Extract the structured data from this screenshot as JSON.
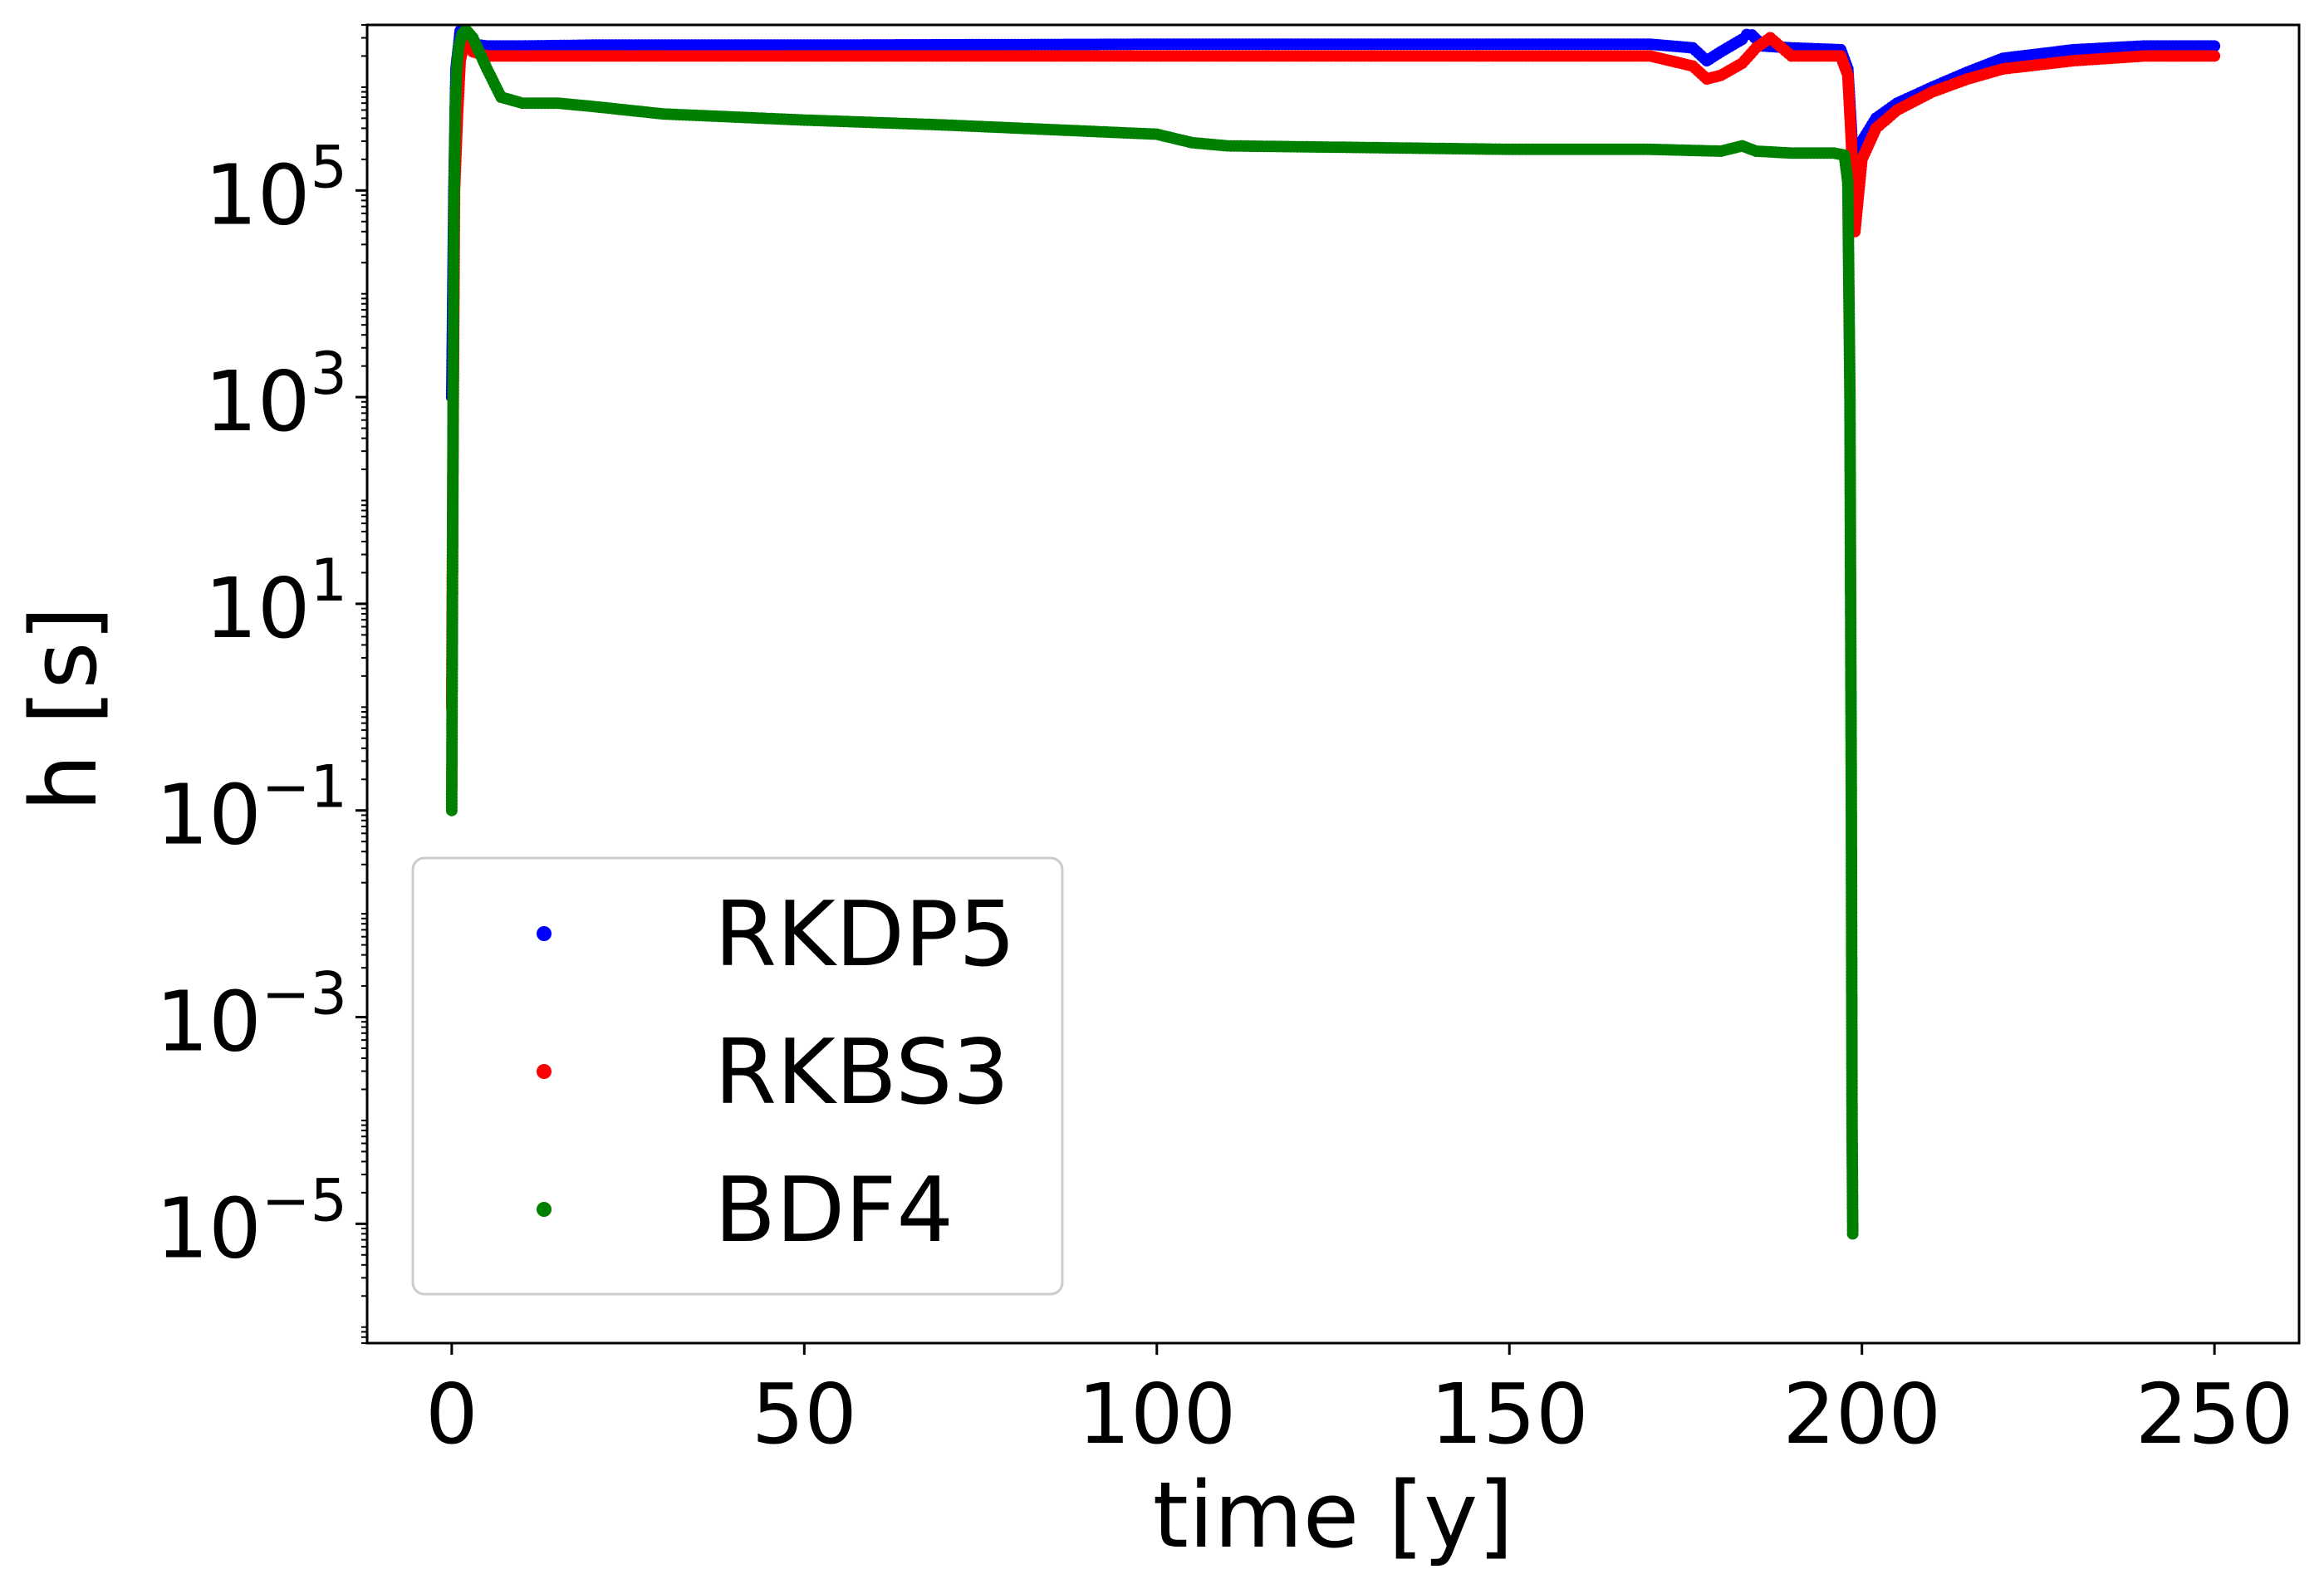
{
  "chart_data": {
    "type": "scatter",
    "title": "",
    "xlabel": "time [y]",
    "ylabel": "h [s]",
    "xlim": [
      -12,
      262
    ],
    "ylim": [
      7e-07,
      4000000.0
    ],
    "yscale": "log",
    "grid": false,
    "legend": {
      "placement": "lower-left"
    },
    "x_ticks": [
      {
        "value": 0,
        "label": "0"
      },
      {
        "value": 50,
        "label": "50"
      },
      {
        "value": 100,
        "label": "100"
      },
      {
        "value": 150,
        "label": "150"
      },
      {
        "value": 200,
        "label": "200"
      },
      {
        "value": 250,
        "label": "250"
      }
    ],
    "y_ticks": [
      {
        "value": 100000.0,
        "base": "10",
        "exponent": "5"
      },
      {
        "value": 1000.0,
        "base": "10",
        "exponent": "3"
      },
      {
        "value": 10.0,
        "base": "10",
        "exponent": "1"
      },
      {
        "value": 0.1,
        "base": "10",
        "exponent": "−1"
      },
      {
        "value": 0.001,
        "base": "10",
        "exponent": "−3"
      },
      {
        "value": 1e-05,
        "base": "10",
        "exponent": "−5"
      }
    ],
    "series": [
      {
        "name": "RKDP5",
        "color": "#0000ff",
        "x": [
          0,
          0.3,
          0.6,
          1.2,
          2,
          3,
          5,
          10,
          20,
          50,
          100,
          150,
          170,
          176,
          178,
          180,
          183,
          184,
          186,
          190,
          197,
          198,
          198.5,
          199,
          200,
          202,
          205,
          210,
          215,
          220,
          230,
          240,
          250
        ],
        "y": [
          1000.0,
          100000.0,
          1500000.0,
          3500000.0,
          3000000.0,
          2600000.0,
          2500000.0,
          2500000.0,
          2550000.0,
          2550000.0,
          2600000.0,
          2600000.0,
          2600000.0,
          2400000.0,
          1800000.0,
          2200000.0,
          2900000.0,
          3400000.0,
          2500000.0,
          2400000.0,
          2300000.0,
          1500000.0,
          400000.0,
          100000.0,
          300000.0,
          500000.0,
          700000.0,
          1000000.0,
          1400000.0,
          1900000.0,
          2300000.0,
          2500000.0,
          2500000.0
        ]
      },
      {
        "name": "RKBS3",
        "color": "#ff0000",
        "x": [
          0,
          0.2,
          0.4,
          0.8,
          1.2,
          2,
          3,
          5,
          10,
          50,
          100,
          150,
          170,
          176,
          178,
          180,
          183,
          185,
          187,
          190,
          197,
          198,
          198.5,
          199,
          200,
          202,
          205,
          210,
          215,
          220,
          230,
          240,
          250
        ],
        "y": [
          1,
          600,
          100000.0,
          500000.0,
          1800000.0,
          3200000.0,
          2200000.0,
          2000000.0,
          2000000.0,
          2000000.0,
          2000000.0,
          2000000.0,
          2000000.0,
          1600000.0,
          1200000.0,
          1300000.0,
          1700000.0,
          2400000.0,
          3000000.0,
          2000000.0,
          2000000.0,
          1300000.0,
          300000.0,
          40000.0,
          200000.0,
          400000.0,
          600000.0,
          900000.0,
          1200000.0,
          1500000.0,
          1800000.0,
          2000000.0,
          2000000.0
        ]
      },
      {
        "name": "BDF4",
        "color": "#008000",
        "x": [
          0,
          0.05,
          0.1,
          0.15,
          0.2,
          0.25,
          0.3,
          0.4,
          0.5,
          0.7,
          1,
          1.5,
          2,
          3,
          5,
          7,
          10,
          15,
          20,
          30,
          50,
          70,
          100,
          105,
          110,
          150,
          170,
          180,
          183,
          185,
          190,
          196,
          197.5,
          198,
          198.3,
          198.5,
          198.6,
          198.7
        ],
        "y": [
          0.1,
          1,
          10,
          100,
          1000.0,
          10000.0,
          50000.0,
          200000.0,
          600000.0,
          1500000.0,
          2500000.0,
          3300000.0,
          3600000.0,
          3000000.0,
          1500000.0,
          800000.0,
          700000.0,
          700000.0,
          650000.0,
          550000.0,
          480000.0,
          430000.0,
          350000.0,
          290000.0,
          270000.0,
          250000.0,
          250000.0,
          240000.0,
          270000.0,
          240000.0,
          230000.0,
          230000.0,
          220000.0,
          120000.0,
          1000.0,
          0.1,
          0.0001,
          8e-06
        ]
      }
    ]
  }
}
